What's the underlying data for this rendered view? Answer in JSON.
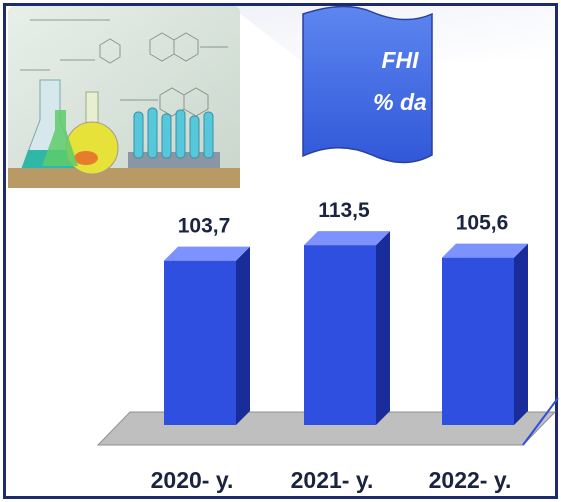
{
  "title_banner": {
    "line1": "FHI",
    "line2": "% da"
  },
  "illustration": {
    "kind": "chemistry-lab-glassware-photo"
  },
  "colors": {
    "bar_front": "#2f4fe0",
    "bar_side": "#1a2c99",
    "bar_top": "#7e92ff",
    "floor": "#bfbfbf",
    "banner": "#3f6fe6",
    "frame": "#1d2b6e",
    "label": "#1a2340"
  },
  "chart_data": {
    "type": "bar",
    "categories": [
      "2020- y.",
      "2021- y.",
      "2022- y."
    ],
    "values": [
      103.7,
      113.5,
      105.6
    ],
    "value_labels": [
      "103,7",
      "113,5",
      "105,6"
    ],
    "title": "FHI % da",
    "xlabel": "",
    "ylabel": "",
    "ylim": [
      0,
      120
    ],
    "style": "3d-columns",
    "grid": false,
    "legend": "none"
  }
}
